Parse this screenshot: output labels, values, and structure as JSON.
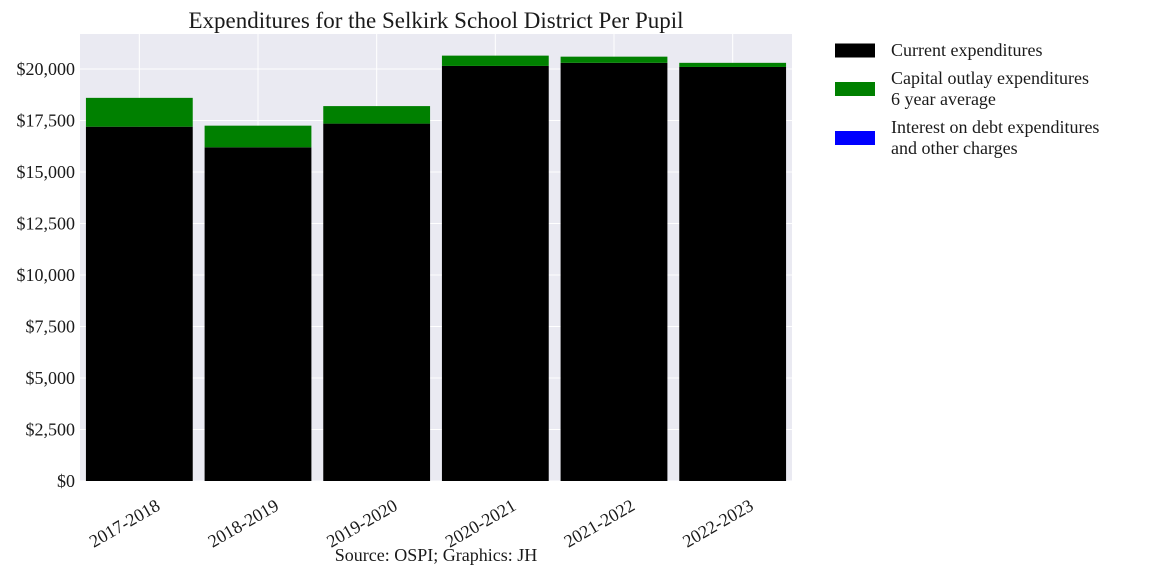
{
  "chart_data": {
    "type": "bar",
    "stacked": true,
    "title": "Expenditures for the Selkirk School District Per Pupil",
    "source": "Source: OSPI; Graphics: JH",
    "categories": [
      "2017-2018",
      "2018-2019",
      "2019-2020",
      "2020-2021",
      "2021-2022",
      "2022-2023"
    ],
    "series": [
      {
        "name": "Current expenditures",
        "color": "#000000",
        "values": [
          17200,
          16200,
          17350,
          20150,
          20300,
          20100
        ]
      },
      {
        "name": "Capital outlay expenditures\n6 year average",
        "color": "#008000",
        "values": [
          1400,
          1050,
          850,
          500,
          300,
          200
        ]
      },
      {
        "name": "Interest on debt expenditures\nand other charges",
        "color": "#0000ff",
        "values": [
          0,
          0,
          0,
          0,
          0,
          0
        ]
      }
    ],
    "ylim": [
      0,
      21700
    ],
    "y_ticks": [
      0,
      2500,
      5000,
      7500,
      10000,
      12500,
      15000,
      17500,
      20000
    ],
    "y_tick_labels": [
      "$0",
      "$2,500",
      "$5,000",
      "$7,500",
      "$10,000",
      "$12,500",
      "$15,000",
      "$17,500",
      "$20,000"
    ],
    "xlabel": "",
    "ylabel": "",
    "grid": true,
    "legend_position": "outside-right",
    "plot_background": "#eaeaf2",
    "grid_color": "#ffffff"
  }
}
